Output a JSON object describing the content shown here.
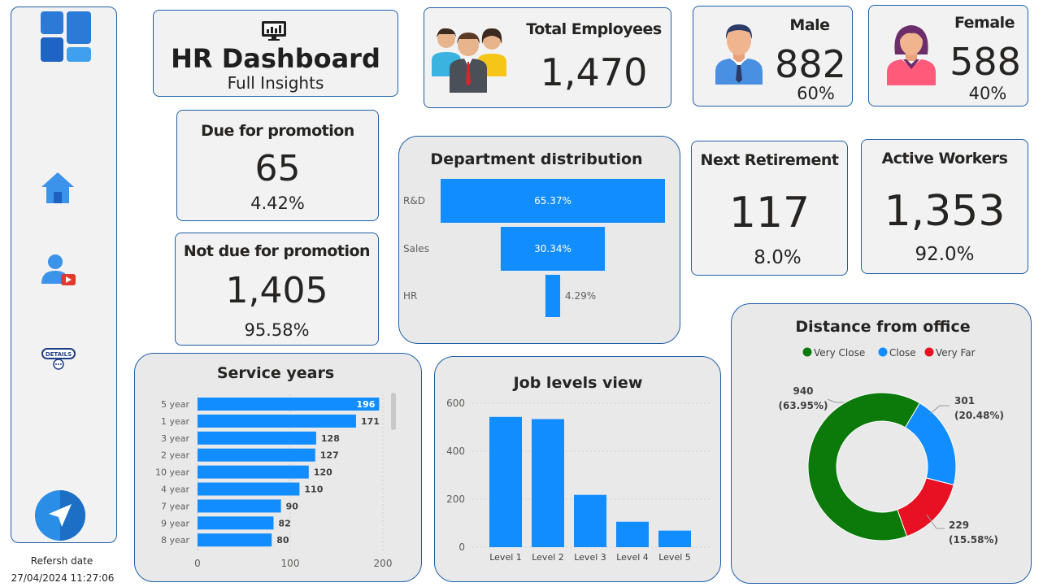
{
  "sidebar": {
    "refresh_label": "Refersh date",
    "refresh_value": "27/04/2024 11:27:06",
    "details_label": "DETAILS"
  },
  "header": {
    "title": "HR Dashboard",
    "subtitle": "Full Insights"
  },
  "kpis": {
    "total": {
      "label": "Total Employees",
      "value": "1,470"
    },
    "male": {
      "label": "Male",
      "value": "882",
      "pct": "60%"
    },
    "female": {
      "label": "Female",
      "value": "588",
      "pct": "40%"
    },
    "due": {
      "label": "Due for promotion",
      "value": "65",
      "pct": "4.42%"
    },
    "notdue": {
      "label": "Not due for promotion",
      "value": "1,405",
      "pct": "95.58%"
    },
    "retire": {
      "label": "Next Retirement",
      "value": "117",
      "pct": "8.0%"
    },
    "active": {
      "label": "Active Workers",
      "value": "1,353",
      "pct": "92.0%"
    }
  },
  "colors": {
    "accent": "#118dff",
    "border": "#1f5fa8",
    "green": "#0b7a0b",
    "red": "#e81123"
  },
  "chart_data": [
    {
      "type": "bar",
      "title": "Department distribution",
      "categories": [
        "R&D",
        "Sales",
        "HR"
      ],
      "values": [
        65.37,
        30.34,
        4.29
      ],
      "labels": [
        "65.37%",
        "30.34%",
        "4.29%"
      ]
    },
    {
      "type": "bar",
      "title": "Service years",
      "categories": [
        "5 year",
        "1 year",
        "3 year",
        "2 year",
        "10 year",
        "4 year",
        "7 year",
        "9 year",
        "8 year"
      ],
      "values": [
        196,
        171,
        128,
        127,
        120,
        110,
        90,
        82,
        80
      ],
      "xticks": [
        "0",
        "100",
        "200"
      ],
      "xlim": [
        0,
        200
      ]
    },
    {
      "type": "bar",
      "title": "Job levels view",
      "categories": [
        "Level 1",
        "Level 2",
        "Level 3",
        "Level 4",
        "Level 5"
      ],
      "values": [
        543,
        534,
        218,
        106,
        69
      ],
      "yticks": [
        "0",
        "200",
        "400",
        "600"
      ],
      "ylim": [
        0,
        600
      ]
    },
    {
      "type": "pie",
      "title": "Distance from office",
      "legend": [
        "Very Close",
        "Close",
        "Very Far"
      ],
      "values": [
        940,
        301,
        229
      ],
      "value_labels": [
        "940",
        "301",
        "229"
      ],
      "pct_labels": [
        "(63.95%)",
        "(20.48%)",
        "(15.58%)"
      ],
      "colors": [
        "#0b7a0b",
        "#118dff",
        "#e81123"
      ]
    }
  ]
}
